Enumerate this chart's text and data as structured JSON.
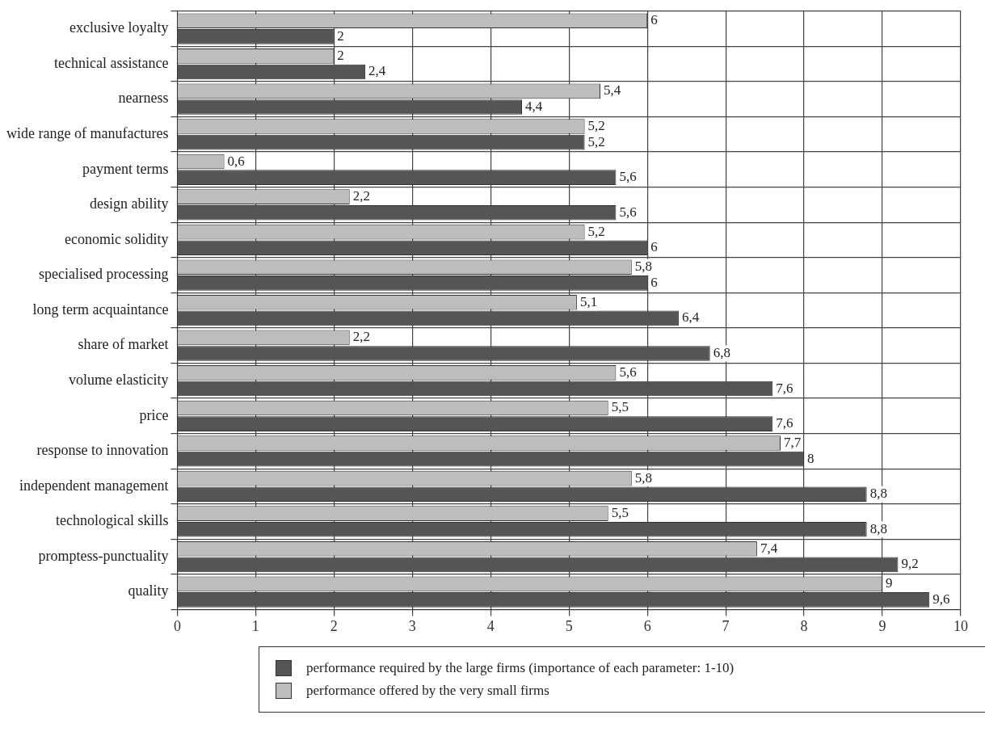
{
  "chart_data": {
    "type": "bar",
    "orientation": "horizontal",
    "categories": [
      "exclusive loyalty",
      "technical assistance",
      "nearness",
      "wide range of manufactures",
      "payment terms",
      "design ability",
      "economic solidity",
      "specialised processing",
      "long term acquaintance",
      "share of market",
      "volume elasticity",
      "price",
      "response to innovation",
      "independent management",
      "technological skills",
      "promptess-punctuality",
      "quality"
    ],
    "series": [
      {
        "name": "performance required by the large firms (importance of each parameter: 1-10)",
        "color": "#555555",
        "values": [
          2,
          2.4,
          4.4,
          5.2,
          5.6,
          5.6,
          6,
          6,
          6.4,
          6.8,
          7.6,
          7.6,
          8,
          8.8,
          8.8,
          9.2,
          9.6
        ],
        "value_labels": [
          "2",
          "2,4",
          "4,4",
          "5,2",
          "5,6",
          "5,6",
          "6",
          "6",
          "6,4",
          "6,8",
          "7,6",
          "7,6",
          "8",
          "8,8",
          "8,8",
          "9,2",
          "9,6"
        ]
      },
      {
        "name": "performance offered by the very small firms",
        "color": "#bdbdbd",
        "values": [
          6,
          2,
          5.4,
          5.2,
          0.6,
          2.2,
          5.2,
          5.8,
          5.1,
          2.2,
          5.6,
          5.5,
          7.7,
          5.8,
          5.5,
          7.4,
          9
        ],
        "value_labels": [
          "6",
          "2",
          "5,4",
          "5,2",
          "0,6",
          "2,2",
          "5,2",
          "5,8",
          "5,1",
          "2,2",
          "5,6",
          "5,5",
          "7,7",
          "5,8",
          "5,5",
          "7,4",
          "9"
        ]
      }
    ],
    "xlim": [
      0,
      10
    ],
    "xticks": [
      0,
      1,
      2,
      3,
      4,
      5,
      6,
      7,
      8,
      9,
      10
    ],
    "grid": true,
    "legend": "bottom"
  }
}
